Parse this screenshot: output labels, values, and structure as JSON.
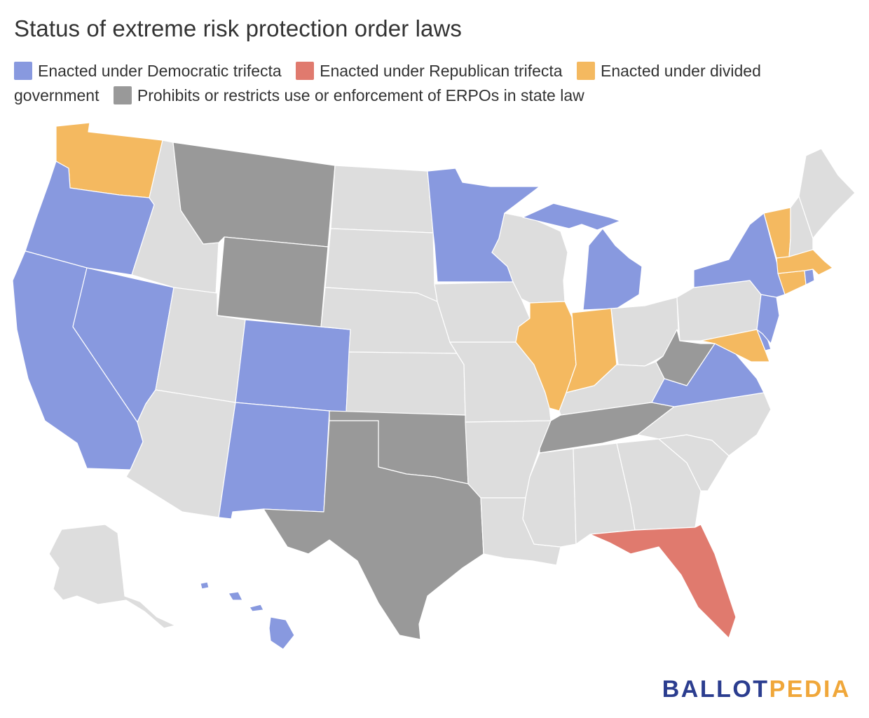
{
  "title": "Status of extreme risk protection order laws",
  "legend": [
    {
      "key": "dem",
      "label": "Enacted under Democratic trifecta",
      "color": "#8899df"
    },
    {
      "key": "rep",
      "label": "Enacted under Republican trifecta",
      "color": "#e07a6e"
    },
    {
      "key": "div",
      "label": "Enacted under divided government",
      "color": "#f4b960"
    },
    {
      "key": "pro",
      "label": "Prohibits or restricts use or enforcement of ERPOs in state law",
      "color": "#999999"
    }
  ],
  "default_color": "#dddddd",
  "state_status": {
    "WA": "div",
    "OR": "dem",
    "CA": "dem",
    "NV": "dem",
    "ID": "none",
    "MT": "pro",
    "WY": "pro",
    "UT": "none",
    "AZ": "none",
    "CO": "dem",
    "NM": "dem",
    "ND": "none",
    "SD": "none",
    "NE": "none",
    "KS": "none",
    "OK": "pro",
    "TX": "pro",
    "MN": "dem",
    "IA": "none",
    "MO": "none",
    "AR": "none",
    "LA": "none",
    "WI": "none",
    "IL": "div",
    "MI": "dem",
    "IN": "div",
    "OH": "none",
    "KY": "none",
    "TN": "pro",
    "MS": "none",
    "AL": "none",
    "GA": "none",
    "FL": "rep",
    "SC": "none",
    "NC": "none",
    "VA": "dem",
    "WV": "pro",
    "PA": "none",
    "NY": "dem",
    "NJ": "dem",
    "DE": "dem",
    "MD": "div",
    "CT": "div",
    "RI": "dem",
    "MA": "div",
    "VT": "div",
    "NH": "none",
    "ME": "none",
    "AK": "none",
    "HI": "dem"
  },
  "logo": {
    "part1": "BALLOT",
    "part2": "PEDIA"
  }
}
